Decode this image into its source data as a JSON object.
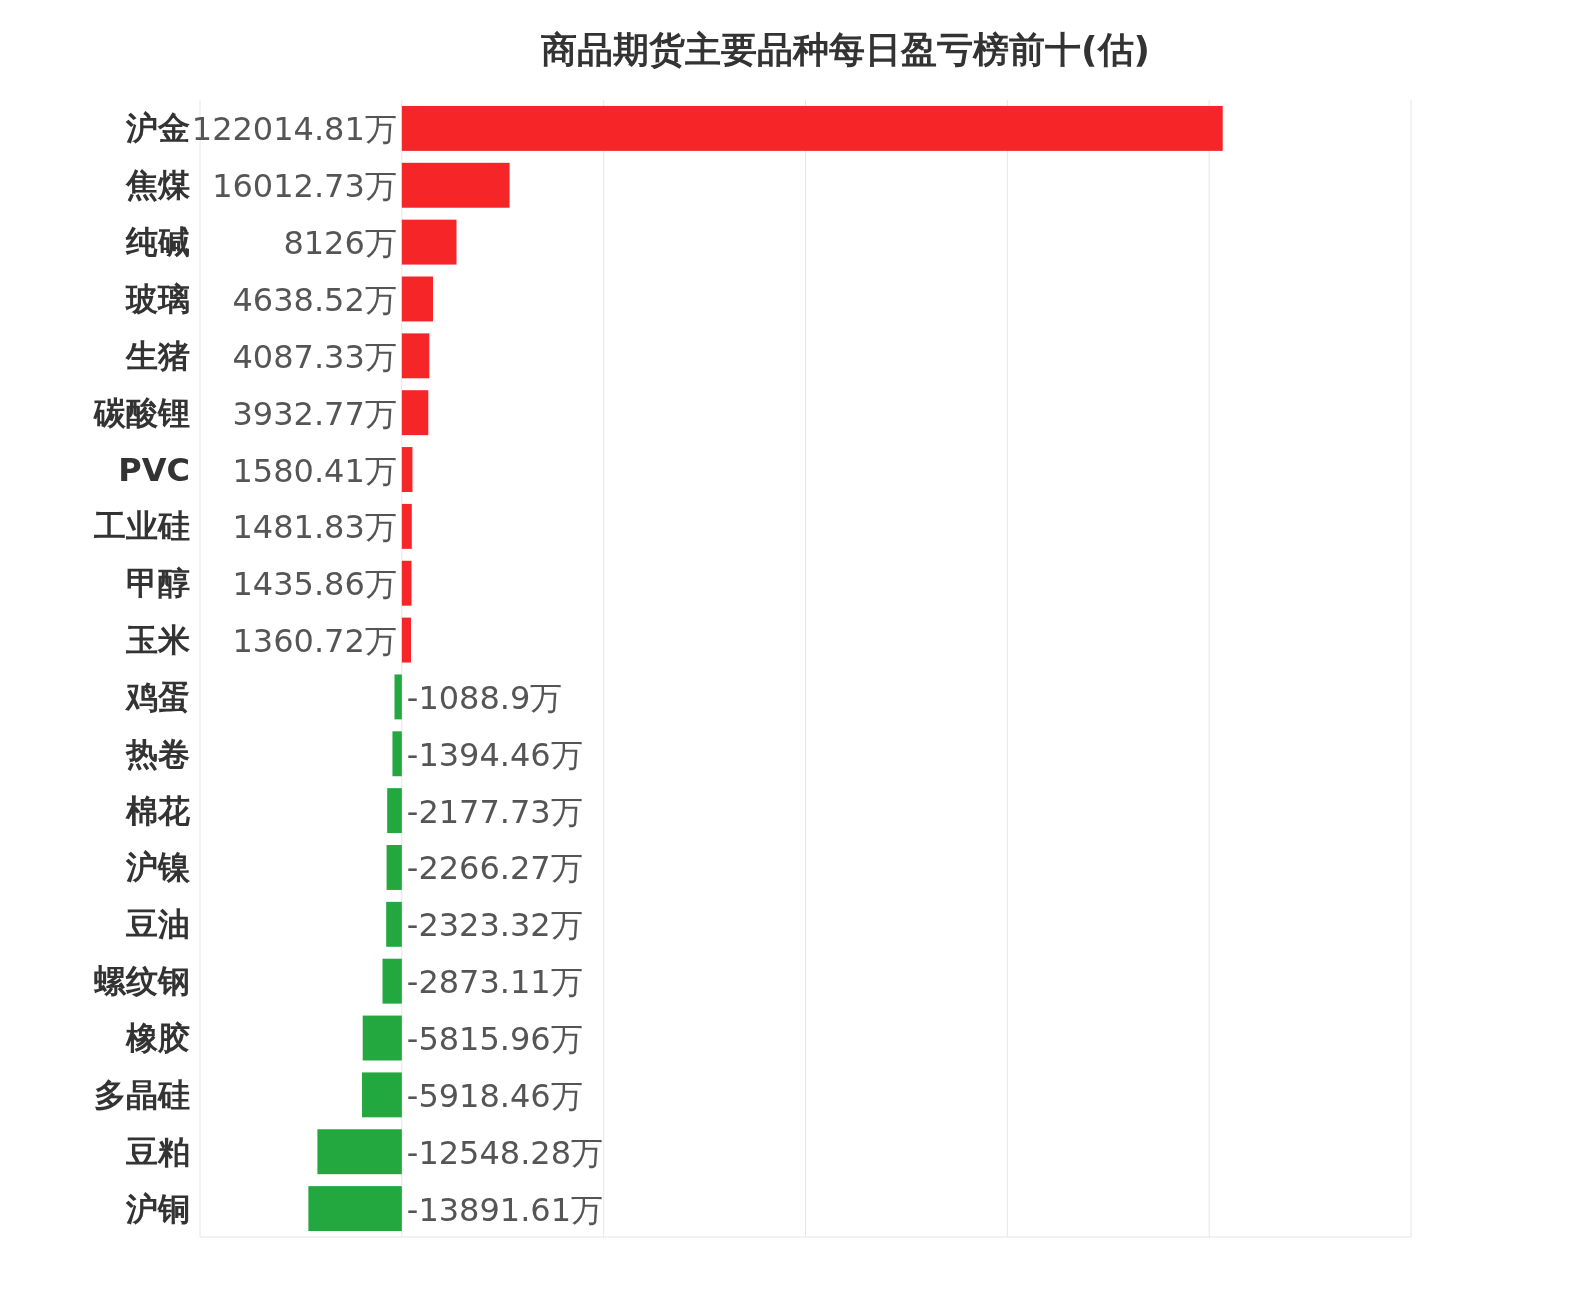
{
  "chart_data": {
    "type": "bar",
    "orientation": "horizontal",
    "title": "商品期货主要品种每日盈亏榜前十(估)",
    "categories": [
      "沪金",
      "焦煤",
      "纯碱",
      "玻璃",
      "生猪",
      "碳酸锂",
      "PVC",
      "工业硅",
      "甲醇",
      "玉米",
      "鸡蛋",
      "热卷",
      "棉花",
      "沪镍",
      "豆油",
      "螺纹钢",
      "橡胶",
      "多晶硅",
      "豆粕",
      "沪铜"
    ],
    "values": [
      122014.81,
      16012.73,
      8126,
      4638.52,
      4087.33,
      3932.77,
      1580.41,
      1481.83,
      1435.86,
      1360.72,
      -1088.9,
      -1394.46,
      -2177.73,
      -2266.27,
      -2323.32,
      -2873.11,
      -5815.96,
      -5918.46,
      -12548.28,
      -13891.61
    ],
    "value_labels": [
      "122014.81万",
      "16012.73万",
      "8126万",
      "4638.52万",
      "4087.33万",
      "3932.77万",
      "1580.41万",
      "1481.83万",
      "1435.86万",
      "1360.72万",
      "-1088.9万",
      "-1394.46万",
      "-2177.73万",
      "-2266.27万",
      "-2323.32万",
      "-2873.11万",
      "-5815.96万",
      "-5918.46万",
      "-12548.28万",
      "-13891.61万"
    ],
    "colors": [
      "#f52528",
      "#f52528",
      "#f52528",
      "#f52528",
      "#f52528",
      "#f52528",
      "#f52528",
      "#f52528",
      "#f52528",
      "#f52528",
      "#22a83f",
      "#22a83f",
      "#22a83f",
      "#22a83f",
      "#22a83f",
      "#22a83f",
      "#22a83f",
      "#22a83f",
      "#22a83f",
      "#22a83f"
    ],
    "xlim": [
      -30000,
      150000
    ],
    "xticks": [
      {
        "value": -30000,
        "label": null
      },
      {
        "value": 0,
        "label": null
      },
      {
        "value": 30000,
        "label": null
      },
      {
        "value": 60000,
        "label": null
      },
      {
        "value": 90000,
        "label": null
      },
      {
        "value": 120000,
        "label": null
      },
      {
        "value": 150000,
        "label": null
      }
    ],
    "grid": "x",
    "tick_labels": "y"
  }
}
